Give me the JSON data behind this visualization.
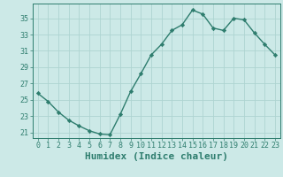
{
  "x": [
    0,
    1,
    2,
    3,
    4,
    5,
    6,
    7,
    8,
    9,
    10,
    11,
    12,
    13,
    14,
    15,
    16,
    17,
    18,
    19,
    20,
    21,
    22,
    23
  ],
  "y": [
    25.8,
    24.8,
    23.5,
    22.5,
    21.8,
    21.2,
    20.8,
    20.7,
    23.2,
    26.0,
    28.2,
    30.5,
    31.8,
    33.5,
    34.2,
    36.0,
    35.5,
    33.8,
    33.5,
    35.0,
    34.8,
    33.2,
    31.8,
    30.5
  ],
  "line_color": "#2e7d6e",
  "marker": "D",
  "marker_size": 2.2,
  "bg_color": "#cce9e7",
  "grid_color": "#aed4d1",
  "xlabel": "Humidex (Indice chaleur)",
  "xlim": [
    -0.5,
    23.5
  ],
  "ylim": [
    20.3,
    36.8
  ],
  "yticks": [
    21,
    23,
    25,
    27,
    29,
    31,
    33,
    35
  ],
  "xticks": [
    0,
    1,
    2,
    3,
    4,
    5,
    6,
    7,
    8,
    9,
    10,
    11,
    12,
    13,
    14,
    15,
    16,
    17,
    18,
    19,
    20,
    21,
    22,
    23
  ],
  "tick_fontsize": 6.0,
  "xlabel_fontsize": 8.0,
  "line_width": 1.0
}
